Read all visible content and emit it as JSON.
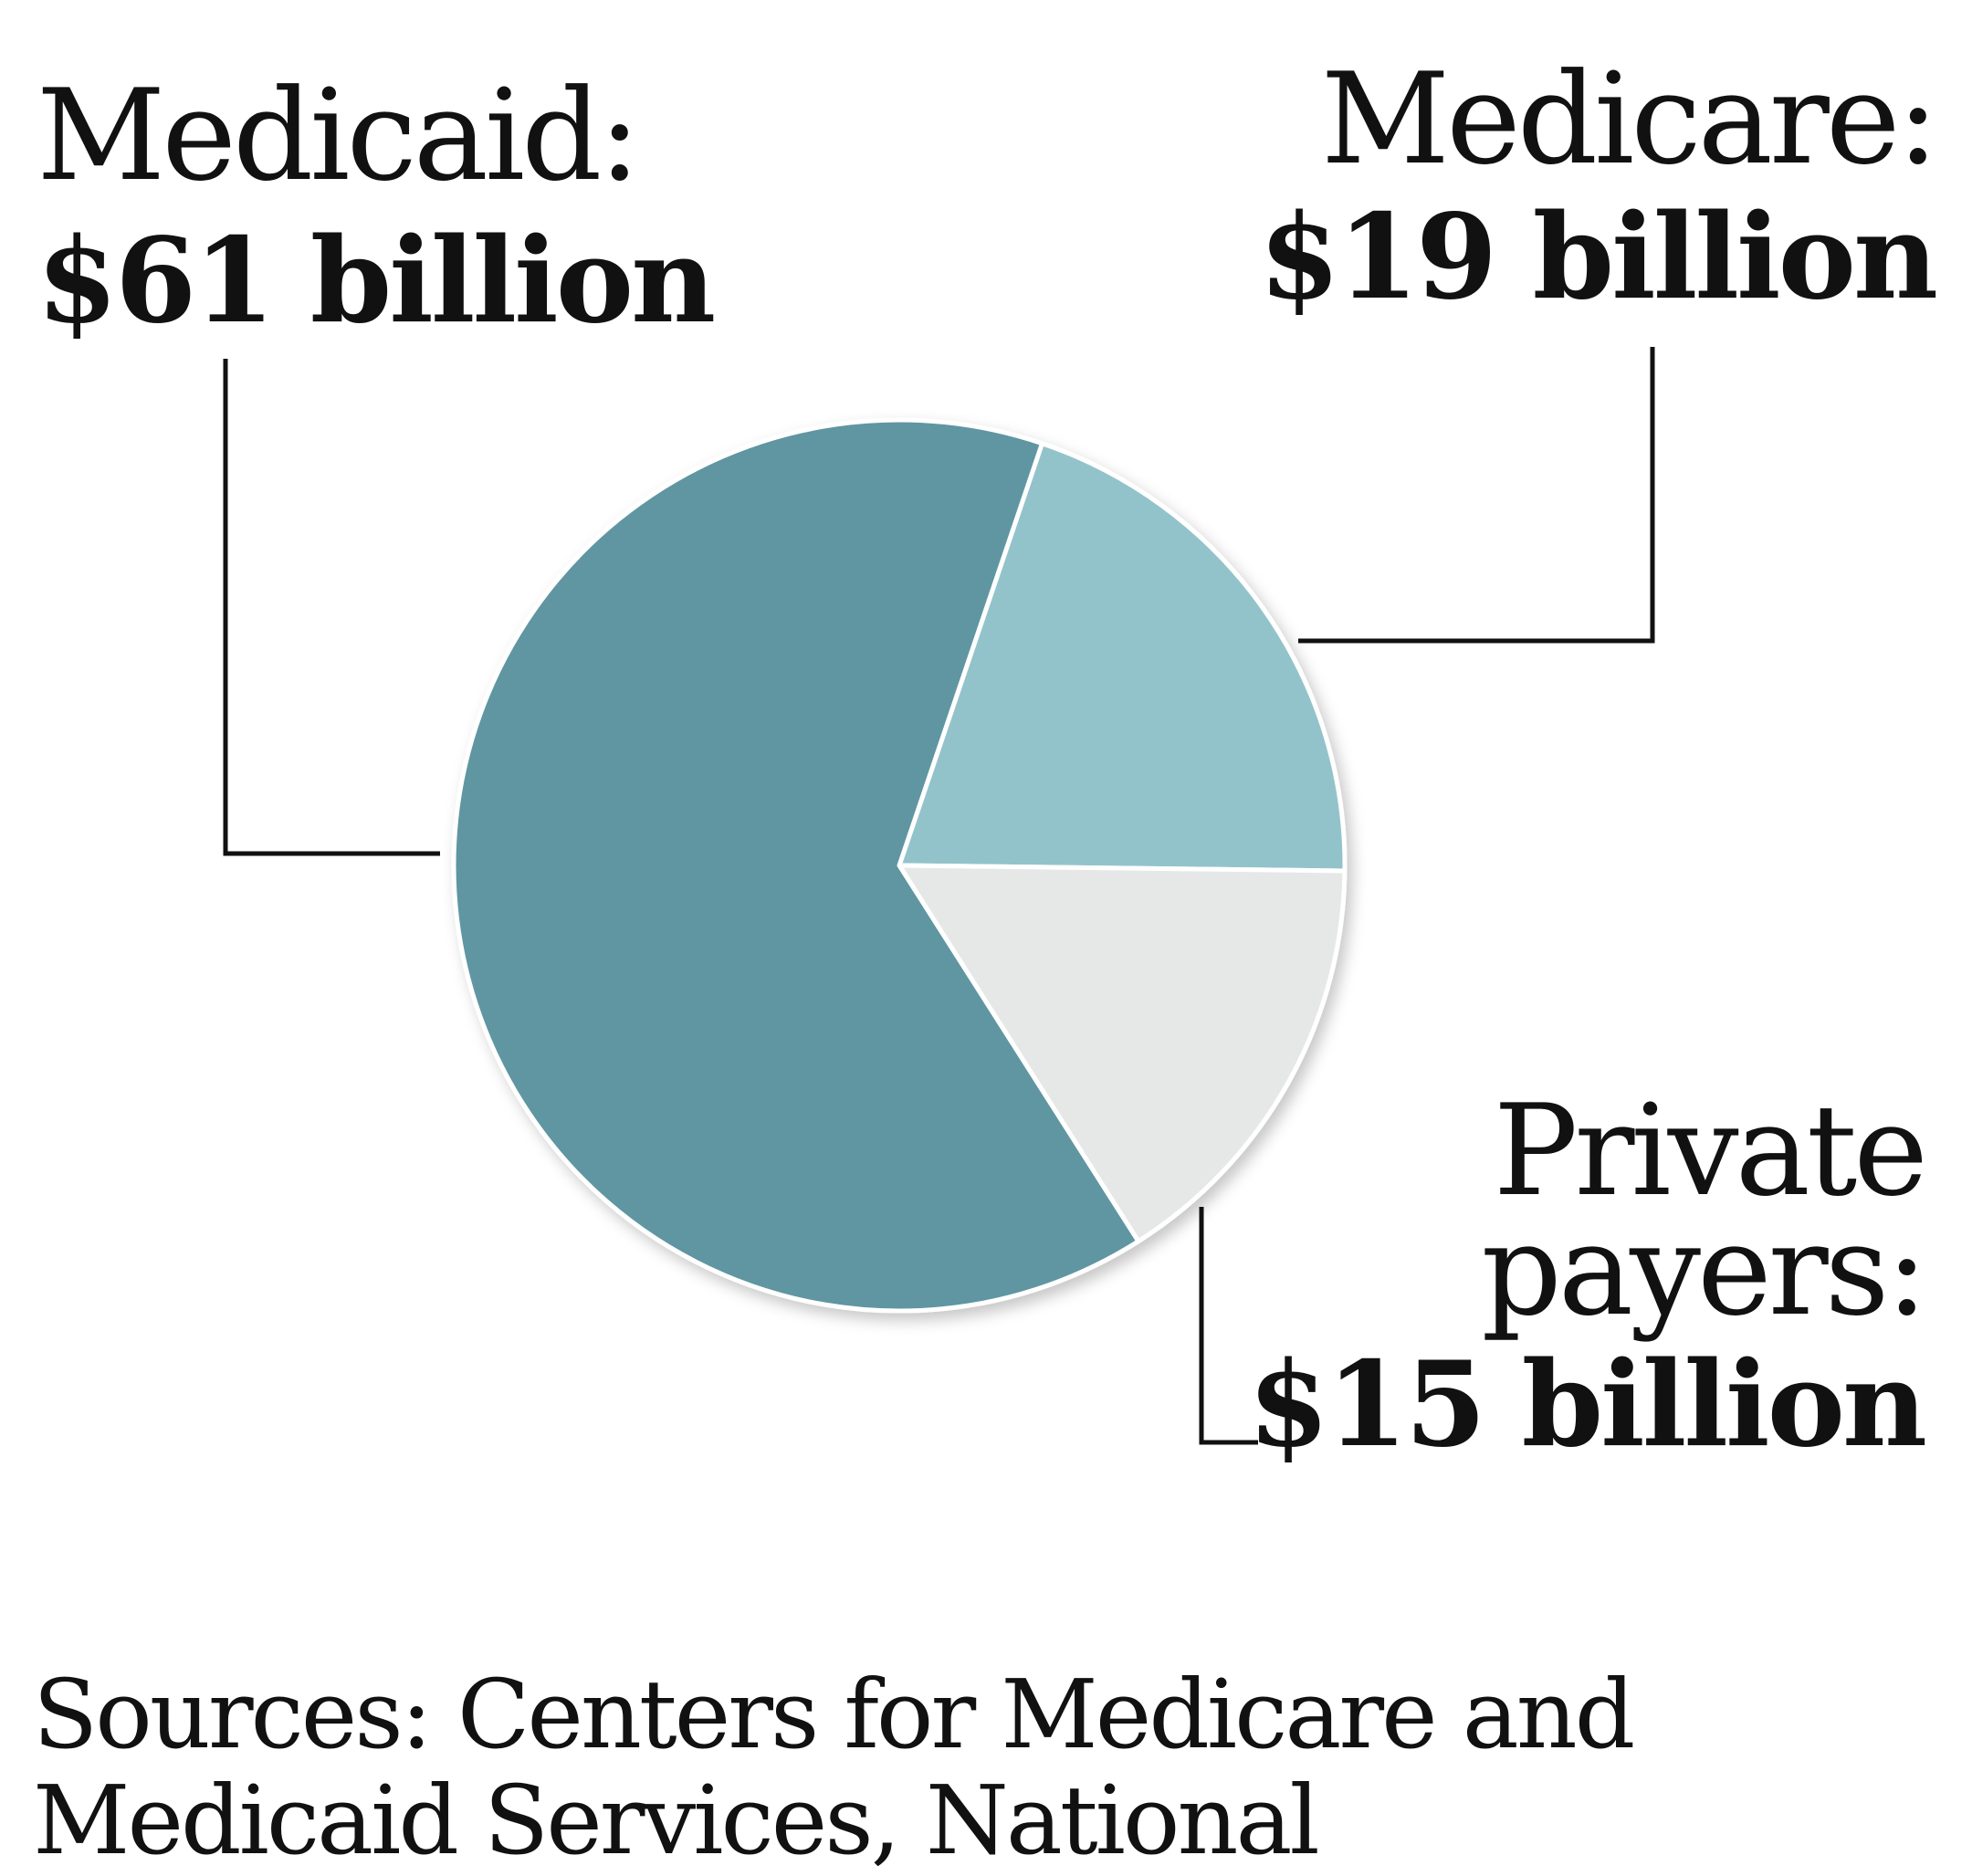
{
  "chart_data": {
    "type": "pie",
    "unit": "billion",
    "slices": [
      {
        "label": "Medicaid:",
        "value": 61,
        "value_label": "$61 billion",
        "color": "#5f96a1"
      },
      {
        "label": "Medicare:",
        "value": 19,
        "value_label": "$19 billion",
        "color": "#93c3ca"
      },
      {
        "label": "Private payers:",
        "label_lines": [
          "Private",
          "payers:"
        ],
        "value": 15,
        "value_label": "$15 billion",
        "color": "#e6e8e8"
      }
    ],
    "slice_border_color": "#ffffff",
    "leader_line_color": "#111111"
  },
  "footer": {
    "sources_line1": "Sources: Centers for Medicare and",
    "sources_line2": "Medicaid Services, National"
  }
}
